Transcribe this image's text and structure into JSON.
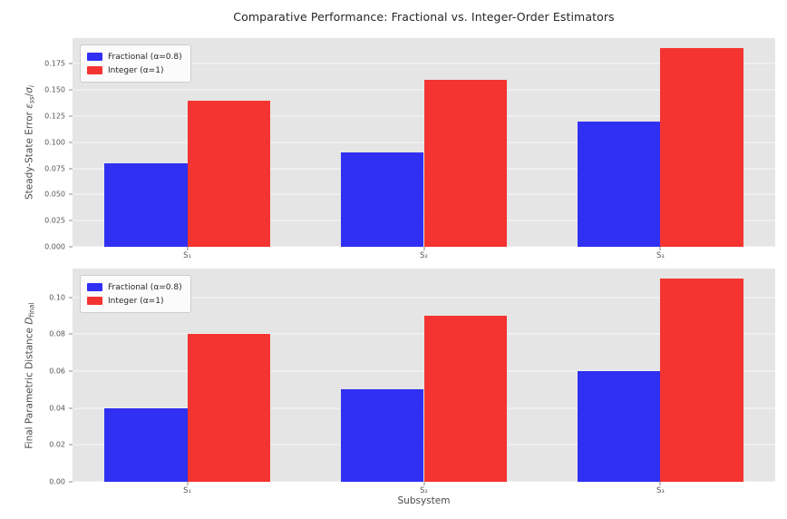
{
  "title": "Comparative Performance: Fractional vs. Integer-Order Estimators",
  "xlabel": "Subsystem",
  "colors": {
    "fractional": "#3030f3",
    "integer": "#f43430",
    "axes_background": "#e5e5e5",
    "gridline": "#f5f5f5",
    "tick_text": "#555555",
    "title_text": "#262626"
  },
  "legend": {
    "position": "upper left",
    "items": [
      {
        "label": "Fractional (α=0.8)",
        "color_key": "fractional"
      },
      {
        "label": "Integer (α=1)",
        "color_key": "integer"
      }
    ]
  },
  "chart_data": [
    {
      "type": "bar",
      "categories": [
        "S₁",
        "S₂",
        "S₃"
      ],
      "series": [
        {
          "name": "Fractional (α=0.8)",
          "color_key": "fractional",
          "values": [
            0.08,
            0.09,
            0.12
          ]
        },
        {
          "name": "Integer (α=1)",
          "color_key": "integer",
          "values": [
            0.14,
            0.16,
            0.19
          ]
        }
      ],
      "ylabel": "Steady-State Error ε_ss/σ_i",
      "ylabel_segments": [
        {
          "t": "Steady-State Error "
        },
        {
          "t": "ε",
          "italic": true
        },
        {
          "t": "ss",
          "sub": true,
          "italic": true
        },
        {
          "t": "/"
        },
        {
          "t": "σ",
          "italic": true
        },
        {
          "t": "i",
          "sub": true,
          "italic": true
        }
      ],
      "yticks": [
        {
          "label": "0.000",
          "value": 0.0
        },
        {
          "label": "0.025",
          "value": 0.025
        },
        {
          "label": "0.050",
          "value": 0.05
        },
        {
          "label": "0.075",
          "value": 0.075
        },
        {
          "label": "0.100",
          "value": 0.1
        },
        {
          "label": "0.125",
          "value": 0.125
        },
        {
          "label": "0.150",
          "value": 0.15
        },
        {
          "label": "0.175",
          "value": 0.175
        }
      ],
      "ylim": [
        0,
        0.1995
      ],
      "xlim": [
        -0.485,
        2.485
      ],
      "bar_width": 0.35,
      "grid": true,
      "legend_visible": true
    },
    {
      "type": "bar",
      "categories": [
        "S₁",
        "S₂",
        "S₃"
      ],
      "series": [
        {
          "name": "Fractional (α=0.8)",
          "color_key": "fractional",
          "values": [
            0.04,
            0.05,
            0.06
          ]
        },
        {
          "name": "Integer (α=1)",
          "color_key": "integer",
          "values": [
            0.08,
            0.09,
            0.11
          ]
        }
      ],
      "ylabel": "Final Parametric Distance D_final",
      "ylabel_segments": [
        {
          "t": "Final Parametric Distance "
        },
        {
          "t": "D",
          "italic": true
        },
        {
          "t": "final",
          "sub": true
        }
      ],
      "yticks": [
        {
          "label": "0.00",
          "value": 0.0
        },
        {
          "label": "0.02",
          "value": 0.02
        },
        {
          "label": "0.04",
          "value": 0.04
        },
        {
          "label": "0.06",
          "value": 0.06
        },
        {
          "label": "0.08",
          "value": 0.08
        },
        {
          "label": "0.10",
          "value": 0.1
        }
      ],
      "ylim": [
        0,
        0.1155
      ],
      "xlim": [
        -0.485,
        2.485
      ],
      "bar_width": 0.35,
      "grid": true,
      "legend_visible": true
    }
  ]
}
